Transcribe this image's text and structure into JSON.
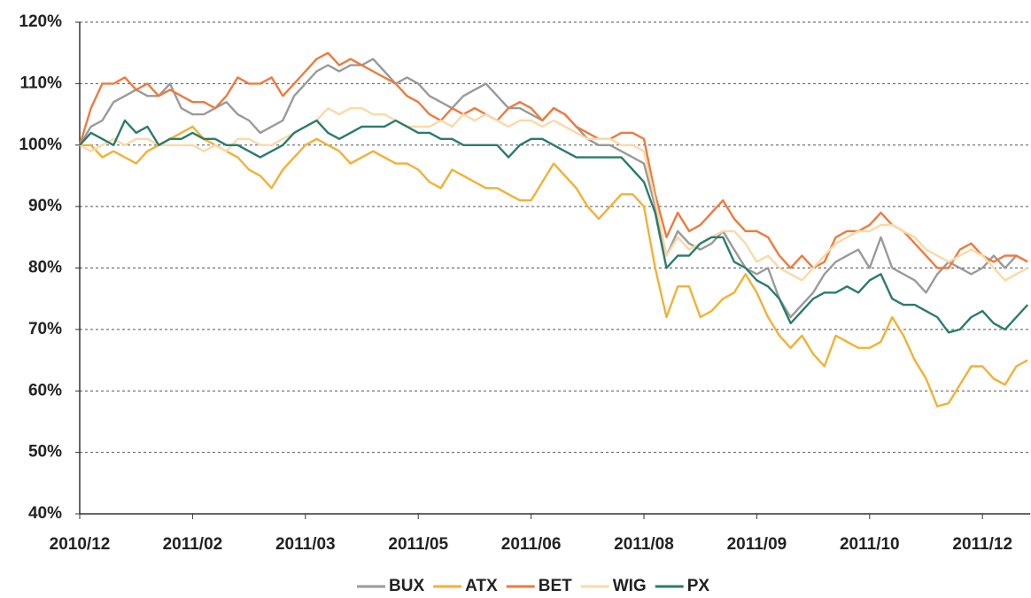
{
  "chart_data": {
    "type": "line",
    "categories": [
      "2010/12",
      null,
      null,
      null,
      null,
      null,
      null,
      null,
      null,
      null,
      "2011/02",
      null,
      null,
      null,
      null,
      null,
      null,
      null,
      null,
      null,
      "2011/03",
      null,
      null,
      null,
      null,
      null,
      null,
      null,
      null,
      null,
      "2011/05",
      null,
      null,
      null,
      null,
      null,
      null,
      null,
      null,
      null,
      "2011/06",
      null,
      null,
      null,
      null,
      null,
      null,
      null,
      null,
      null,
      "2011/08",
      null,
      null,
      null,
      null,
      null,
      null,
      null,
      null,
      null,
      "2011/09",
      null,
      null,
      null,
      null,
      null,
      null,
      null,
      null,
      null,
      "2011/10",
      null,
      null,
      null,
      null,
      null,
      null,
      null,
      null,
      null,
      "2011/12",
      null,
      null,
      null,
      null
    ],
    "series": [
      {
        "name": "BUX",
        "color": "#9a9a9a",
        "values": [
          100,
          103,
          104,
          107,
          108,
          109,
          108,
          108,
          110,
          106,
          105,
          105,
          106,
          107,
          105,
          104,
          102,
          103,
          104,
          108,
          110,
          112,
          113,
          112,
          113,
          113,
          114,
          112,
          110,
          111,
          110,
          108,
          107,
          106,
          108,
          109,
          110,
          108,
          106,
          106,
          105,
          104,
          106,
          105,
          103,
          101,
          100,
          100,
          99,
          98,
          97,
          90,
          82,
          86,
          84,
          83,
          84,
          86,
          83,
          80,
          79,
          80,
          75,
          72,
          74,
          76,
          79,
          81,
          82,
          83,
          80,
          85,
          80,
          79,
          78,
          76,
          79,
          81,
          80,
          79,
          80,
          82,
          80,
          82,
          81
        ]
      },
      {
        "name": "ATX",
        "color": "#f2b134",
        "values": [
          100,
          100,
          98,
          99,
          98,
          97,
          99,
          100,
          101,
          102,
          103,
          101,
          100,
          99,
          98,
          96,
          95,
          93,
          96,
          98,
          100,
          101,
          100,
          99,
          97,
          98,
          99,
          98,
          97,
          97,
          96,
          94,
          93,
          96,
          95,
          94,
          93,
          93,
          92,
          91,
          91,
          94,
          97,
          95,
          93,
          90,
          88,
          90,
          92,
          92,
          90,
          80,
          72,
          77,
          77,
          72,
          73,
          75,
          76,
          79,
          76,
          72,
          69,
          67,
          69,
          66,
          64,
          69,
          68,
          67,
          67,
          68,
          72,
          69,
          65,
          62,
          57.5,
          58,
          61,
          64,
          64,
          62,
          61,
          64,
          65
        ]
      },
      {
        "name": "BET",
        "color": "#ee7a3e",
        "values": [
          100,
          106,
          110,
          110,
          111,
          109,
          110,
          108,
          109,
          108,
          107,
          107,
          106,
          108,
          111,
          110,
          110,
          111,
          108,
          110,
          112,
          114,
          115,
          113,
          114,
          113,
          112,
          111,
          110,
          108,
          107,
          105,
          104,
          106,
          105,
          106,
          105,
          104,
          106,
          107,
          106,
          104,
          106,
          105,
          103,
          102,
          101,
          101,
          102,
          102,
          101,
          92,
          85,
          89,
          86,
          87,
          89,
          91,
          88,
          86,
          86,
          85,
          82,
          80,
          82,
          80,
          81,
          85,
          86,
          86,
          87,
          89,
          87,
          86,
          84,
          82,
          80,
          80,
          83,
          84,
          82,
          81,
          82,
          82,
          81
        ]
      },
      {
        "name": "WIG",
        "color": "#fbd9a6",
        "values": [
          100,
          99,
          100,
          101,
          100,
          101,
          101,
          100,
          100,
          100,
          100,
          99,
          100,
          99,
          101,
          101,
          100,
          100,
          101,
          102,
          103,
          104,
          106,
          105,
          106,
          106,
          105,
          105,
          104,
          103,
          103,
          103,
          104,
          103,
          105,
          104,
          105,
          104,
          103,
          104,
          104,
          103,
          104,
          103,
          102,
          101,
          101,
          101,
          100,
          100,
          99,
          91,
          82,
          85,
          83,
          84,
          85,
          86,
          86,
          84,
          81,
          82,
          80,
          79,
          78,
          80,
          82,
          84,
          85,
          86,
          86,
          87,
          87,
          86,
          85,
          83,
          82,
          81,
          82,
          83,
          82,
          80,
          78,
          79,
          80
        ]
      },
      {
        "name": "PX",
        "color": "#2a7c6c",
        "values": [
          100,
          102,
          101,
          100,
          104,
          102,
          103,
          100,
          101,
          101,
          102,
          101,
          101,
          100,
          100,
          99,
          98,
          99,
          100,
          102,
          103,
          104,
          102,
          101,
          102,
          103,
          103,
          103,
          104,
          103,
          102,
          102,
          101,
          101,
          100,
          100,
          100,
          100,
          98,
          100,
          101,
          101,
          100,
          99,
          98,
          98,
          98,
          98,
          98,
          96,
          94,
          89,
          80,
          82,
          82,
          84,
          85,
          85,
          81,
          80,
          78,
          77,
          75,
          71,
          73,
          75,
          76,
          76,
          77,
          76,
          78,
          79,
          75,
          74,
          74,
          73,
          72,
          69.5,
          70,
          72,
          73,
          71,
          70,
          72,
          74
        ]
      }
    ],
    "ylim": [
      40,
      120
    ],
    "yticks": [
      {
        "value": 40,
        "label": "40%"
      },
      {
        "value": 50,
        "label": "50%"
      },
      {
        "value": 60,
        "label": "60%"
      },
      {
        "value": 70,
        "label": "70%"
      },
      {
        "value": 80,
        "label": "80%"
      },
      {
        "value": 90,
        "label": "90%"
      },
      {
        "value": 100,
        "label": "100%"
      },
      {
        "value": 110,
        "label": "110%"
      },
      {
        "value": 120,
        "label": "120%"
      }
    ],
    "grid": true,
    "legend": "bottom"
  }
}
